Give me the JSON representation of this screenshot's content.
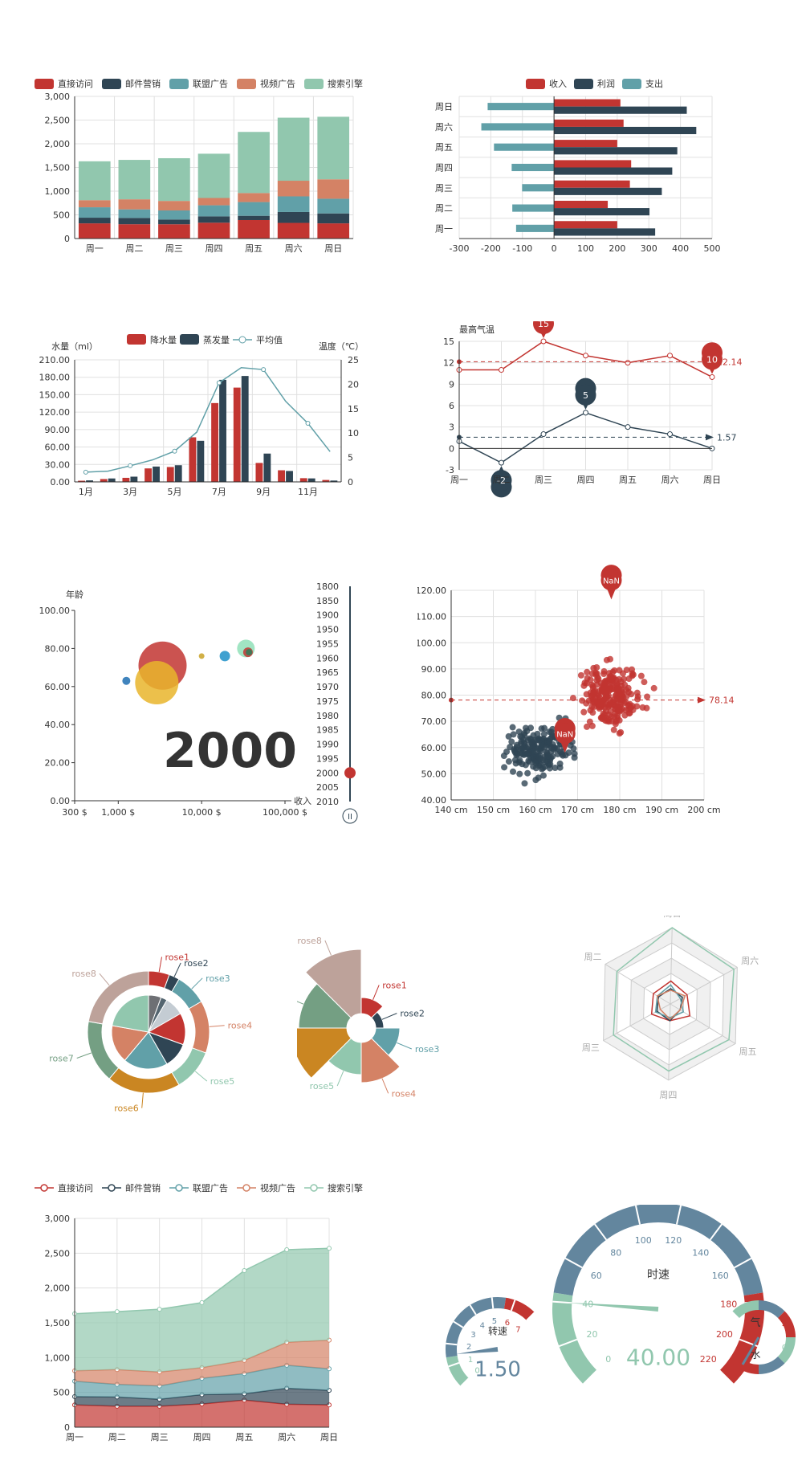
{
  "colors": {
    "red": "#c23531",
    "navy": "#2f4554",
    "teal": "#61a0a8",
    "orange": "#d48265",
    "green": "#91c7ae",
    "brown": "#ca8622",
    "olive": "#749f83",
    "rose": "#bda29a",
    "grid": "#e0e0e0",
    "axis": "#333333",
    "tick_text": "#333333"
  },
  "chart_data": [
    {
      "id": "stacked_bar",
      "type": "bar",
      "stacked": true,
      "legend": [
        "直接访问",
        "邮件营销",
        "联盟广告",
        "视频广告",
        "搜索引擎"
      ],
      "categories": [
        "周一",
        "周二",
        "周三",
        "周四",
        "周五",
        "周六",
        "周日"
      ],
      "series": [
        {
          "name": "直接访问",
          "values": [
            320,
            302,
            301,
            334,
            390,
            330,
            320
          ]
        },
        {
          "name": "邮件营销",
          "values": [
            120,
            132,
            101,
            134,
            90,
            230,
            210
          ]
        },
        {
          "name": "联盟广告",
          "values": [
            220,
            182,
            191,
            234,
            290,
            330,
            310
          ]
        },
        {
          "name": "视频广告",
          "values": [
            150,
            212,
            201,
            154,
            190,
            330,
            410
          ]
        },
        {
          "name": "搜索引擎",
          "values": [
            820,
            832,
            901,
            934,
            1290,
            1330,
            1320
          ]
        }
      ],
      "ylim": [
        0,
        3000
      ],
      "yticks": [
        "0",
        "500",
        "1,000",
        "1,500",
        "2,000",
        "2,500",
        "3,000"
      ]
    },
    {
      "id": "horizontal_bar",
      "type": "bar",
      "orientation": "horizontal",
      "legend": [
        "收入",
        "利润",
        "支出"
      ],
      "categories": [
        "周一",
        "周二",
        "周三",
        "周四",
        "周五",
        "周六",
        "周日"
      ],
      "series": [
        {
          "name": "收入",
          "values": [
            200,
            170,
            240,
            244,
            200,
            220,
            210
          ]
        },
        {
          "name": "利润",
          "values": [
            320,
            302,
            341,
            374,
            390,
            450,
            420
          ]
        },
        {
          "name": "支出",
          "values": [
            -120,
            -132,
            -101,
            -134,
            -190,
            -230,
            -210
          ]
        }
      ],
      "xlim": [
        -300,
        500
      ],
      "xticks": [
        "-300",
        "-200",
        "-100",
        "0",
        "100",
        "200",
        "300",
        "400",
        "500"
      ]
    },
    {
      "id": "rain_evaporation",
      "type": "bar",
      "legend": [
        "降水量",
        "蒸发量",
        "平均值"
      ],
      "categories": [
        "1月",
        "2月",
        "3月",
        "4月",
        "5月",
        "6月",
        "7月",
        "8月",
        "9月",
        "10月",
        "11月",
        "12月"
      ],
      "xtick_labels": [
        "1月",
        "3月",
        "5月",
        "7月",
        "9月",
        "11月"
      ],
      "ylabel_left": "水量（ml）",
      "ylabel_right": "温度（℃）",
      "ylim_left": [
        0,
        210
      ],
      "ylim_right": [
        0,
        25
      ],
      "yticks_left": [
        "0.00",
        "30.00",
        "60.00",
        "90.00",
        "120.00",
        "150.00",
        "180.00",
        "210.00"
      ],
      "yticks_right": [
        "0",
        "5",
        "10",
        "15",
        "20",
        "25"
      ],
      "series": [
        {
          "name": "降水量",
          "values": [
            2.0,
            4.9,
            7.0,
            23.2,
            25.6,
            76.7,
            135.6,
            162.2,
            32.6,
            20.0,
            6.4,
            3.3
          ]
        },
        {
          "name": "蒸发量",
          "values": [
            2.6,
            5.9,
            9.0,
            26.4,
            28.7,
            70.7,
            175.6,
            182.2,
            48.7,
            18.8,
            6.0,
            2.3
          ]
        },
        {
          "name": "平均值",
          "axis": "right",
          "values": [
            2.0,
            2.2,
            3.3,
            4.5,
            6.3,
            10.2,
            20.3,
            23.4,
            23.0,
            16.5,
            12.0,
            6.2
          ]
        }
      ]
    },
    {
      "id": "temperature_lines",
      "type": "line",
      "ylabel": "最高气温",
      "categories": [
        "周一",
        "周二",
        "周三",
        "周四",
        "周五",
        "周六",
        "周日"
      ],
      "ylim": [
        -3,
        15
      ],
      "yticks": [
        "-3",
        "0",
        "3",
        "6",
        "9",
        "12",
        "15"
      ],
      "series": [
        {
          "values": [
            11,
            11,
            15,
            13,
            12,
            13,
            10
          ],
          "max_label": "15",
          "min_label": "10",
          "mean_label": "12.14",
          "mean": 12.14
        },
        {
          "values": [
            1,
            -2,
            2,
            5,
            3,
            2,
            0
          ],
          "max_label": "5",
          "min_label": "-2",
          "mean_label": "1.57",
          "mean": 1.57
        }
      ]
    },
    {
      "id": "bubble_timeline",
      "type": "scatter",
      "ylabel": "年龄",
      "xlabel": "收入",
      "xscale": "log",
      "xlim": [
        300,
        100000
      ],
      "xticks": [
        "300 $",
        "1,000 $",
        "10,000 $",
        "100,000 $"
      ],
      "ylim": [
        0,
        100
      ],
      "yticks": [
        "0.00",
        "20.00",
        "40.00",
        "60.00",
        "80.00",
        "100.00"
      ],
      "year": "2000",
      "timeline_years": [
        "1800",
        "1850",
        "1900",
        "1950",
        "1955",
        "1960",
        "1965",
        "1970",
        "1975",
        "1980",
        "1985",
        "1990",
        "1995",
        "2000",
        "2005",
        "2010"
      ],
      "current_year_index": 13,
      "points": [
        {
          "x": 3400,
          "y": 71,
          "size": 60,
          "color": "#c23531"
        },
        {
          "x": 2900,
          "y": 62,
          "size": 54,
          "color": "#e9b52b"
        },
        {
          "x": 1250,
          "y": 63,
          "size": 10,
          "color": "#1f6fb2"
        },
        {
          "x": 10000,
          "y": 76,
          "size": 7,
          "color": "#c9a227"
        },
        {
          "x": 19000,
          "y": 76,
          "size": 13,
          "color": "#1e90c8"
        },
        {
          "x": 34000,
          "y": 80,
          "size": 22,
          "color": "#91e0b8"
        },
        {
          "x": 36000,
          "y": 78,
          "size": 12,
          "color": "#c23531"
        },
        {
          "x": 37000,
          "y": 78,
          "size": 8,
          "color": "#2f7d5a"
        }
      ]
    },
    {
      "id": "height_weight_scatter",
      "type": "scatter",
      "xlim": [
        140,
        200
      ],
      "ylim": [
        40,
        120
      ],
      "xticks": [
        "140 cm",
        "150 cm",
        "160 cm",
        "170 cm",
        "180 cm",
        "190 cm",
        "200 cm"
      ],
      "yticks": [
        "40.00",
        "50.00",
        "60.00",
        "70.00",
        "80.00",
        "90.00",
        "100.00",
        "110.00",
        "120.00"
      ],
      "mean_label": "78.14",
      "mean": 78.14,
      "pin_label": "NaN",
      "pin_label_2": "NaN",
      "series": [
        {
          "name": "female",
          "center": [
            161,
            60
          ],
          "spread": [
            6,
            8
          ],
          "count": 200
        },
        {
          "name": "male",
          "center": [
            178,
            80
          ],
          "spread": [
            6,
            9
          ],
          "count": 240
        }
      ]
    },
    {
      "id": "nested_pie",
      "type": "pie",
      "labels": [
        "rose1",
        "rose2",
        "rose3",
        "rose4",
        "rose5",
        "rose6",
        "rose7",
        "rose8"
      ],
      "outer_values": [
        10,
        5,
        15,
        25,
        20,
        35,
        30,
        40
      ],
      "inner_values": [
        10,
        5,
        15,
        25,
        20,
        35,
        30,
        40
      ]
    },
    {
      "id": "rose_pie",
      "type": "pie",
      "rose": true,
      "labels": [
        "rose1",
        "rose2",
        "rose3",
        "rose4",
        "rose5",
        "rose6",
        "rose7",
        "rose8"
      ],
      "values": [
        10,
        5,
        15,
        25,
        20,
        35,
        30,
        40
      ]
    },
    {
      "id": "radar",
      "type": "radar",
      "indicators": [
        "周日",
        "周六",
        "周五",
        "周四",
        "周三",
        "周二"
      ],
      "max": 400
    },
    {
      "id": "stacked_area",
      "type": "area",
      "stacked": true,
      "legend": [
        "直接访问",
        "邮件营销",
        "联盟广告",
        "视频广告",
        "搜索引擎"
      ],
      "categories": [
        "周一",
        "周二",
        "周三",
        "周四",
        "周五",
        "周六",
        "周日"
      ],
      "series": [
        {
          "name": "直接访问",
          "values": [
            320,
            302,
            301,
            334,
            390,
            330,
            320
          ]
        },
        {
          "name": "邮件营销",
          "values": [
            120,
            132,
            101,
            134,
            90,
            230,
            210
          ]
        },
        {
          "name": "联盟广告",
          "values": [
            220,
            182,
            191,
            234,
            290,
            330,
            310
          ]
        },
        {
          "name": "视频广告",
          "values": [
            150,
            212,
            201,
            154,
            190,
            330,
            410
          ]
        },
        {
          "name": "搜索引擎",
          "values": [
            820,
            832,
            901,
            934,
            1290,
            1330,
            1320
          ]
        }
      ],
      "ylim": [
        0,
        3000
      ],
      "yticks": [
        "0",
        "500",
        "1,000",
        "1,500",
        "2,000",
        "2,500",
        "3,000"
      ]
    },
    {
      "id": "gauges",
      "type": "gauge",
      "speed": {
        "title": "时速",
        "value": "40.00",
        "min": 0,
        "max": 220,
        "ticks": [
          "0",
          "20",
          "40",
          "60",
          "80",
          "100",
          "120",
          "140",
          "160",
          "180",
          "200",
          "220"
        ],
        "numeric": 40
      },
      "rpm": {
        "title": "转速",
        "value": "1.50",
        "min": 0,
        "max": 7,
        "ticks": [
          "0",
          "1",
          "2",
          "3",
          "4",
          "5",
          "6",
          "7"
        ],
        "numeric": 1.5
      },
      "fuel": {
        "top_label": "气",
        "bottom_label": "水",
        "ticks_top": [
          "0",
          "2"
        ],
        "ticks_bottom": [
          "0",
          "2"
        ]
      }
    }
  ]
}
